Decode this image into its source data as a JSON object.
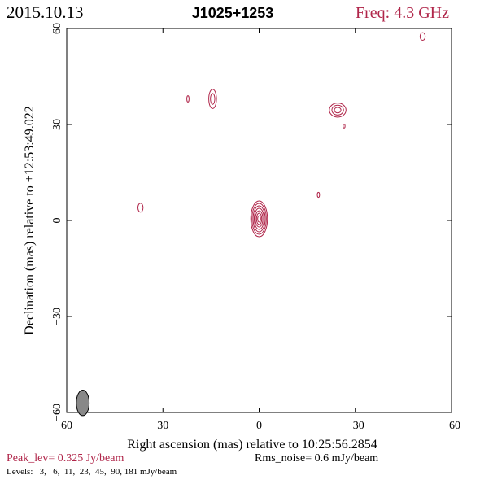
{
  "header": {
    "date": "2015.10.13",
    "source": "J1025+1253",
    "freq": "Freq: 4.3 GHz"
  },
  "footer": {
    "peak": "Peak_lev=  0.325 Jy/beam",
    "rms": "Rms_noise=   0.6 mJy/beam",
    "levels": "Levels:   3,   6,  11,  23,  45,  90, 181 mJy/beam"
  },
  "colors": {
    "contour": "#b0264a",
    "axis": "#000000",
    "beam_fill": "#888888"
  },
  "chart_data": {
    "type": "contour",
    "xlabel": "Right ascension (mas) relative to 10:25:56.2854",
    "ylabel": "Declination (mas) relative to +12:53:49.022",
    "xlim": [
      60,
      -60
    ],
    "ylim": [
      -60,
      60
    ],
    "x_ticks": [
      60,
      30,
      0,
      -30,
      -60
    ],
    "y_ticks": [
      60,
      30,
      0,
      -30,
      -60
    ],
    "x_tick_labels": [
      "60",
      "30",
      "0",
      "−30",
      "−60"
    ],
    "y_tick_labels": [
      "60",
      "30",
      "0",
      "−30",
      "−60"
    ],
    "levels_mJy": [
      3,
      6,
      11,
      23,
      45,
      90,
      181
    ],
    "components": [
      {
        "x": 0,
        "y": 0.5,
        "ax": 2.6,
        "ay": 5.6,
        "ncont": 7
      },
      {
        "x": 14.5,
        "y": 38,
        "ax": 1.2,
        "ay": 3.0,
        "ncont": 2
      },
      {
        "x": -24.5,
        "y": 34.5,
        "ax": 2.6,
        "ay": 2.2,
        "ncont": 3
      },
      {
        "x": 22.2,
        "y": 38,
        "ax": 0.35,
        "ay": 1.0,
        "ncont": 1
      },
      {
        "x": 37,
        "y": 4,
        "ax": 0.8,
        "ay": 1.4,
        "ncont": 1
      },
      {
        "x": -18.5,
        "y": 8,
        "ax": 0.35,
        "ay": 0.8,
        "ncont": 1
      },
      {
        "x": -26.5,
        "y": 29.5,
        "ax": 0.3,
        "ay": 0.6,
        "ncont": 1
      },
      {
        "x": -51,
        "y": 57.5,
        "ax": 0.8,
        "ay": 1.2,
        "ncont": 1
      }
    ],
    "beam": {
      "x": 55,
      "y": -57,
      "major": 4.0,
      "minor": 2.0
    }
  }
}
